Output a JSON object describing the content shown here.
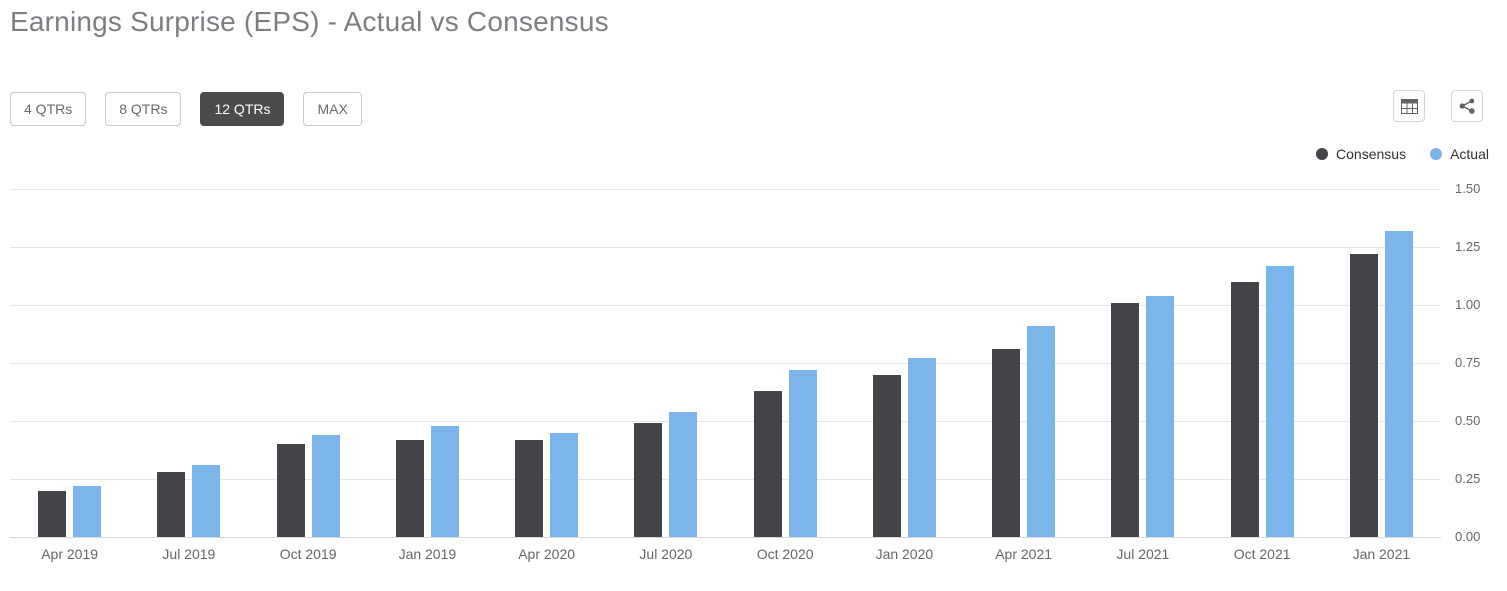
{
  "page": {
    "title": "Earnings Surprise (EPS) - Actual vs Consensus"
  },
  "toolbar": {
    "range_buttons": [
      {
        "label": "4 QTRs",
        "selected": false
      },
      {
        "label": "8 QTRs",
        "selected": false
      },
      {
        "label": "12 QTRs",
        "selected": true
      },
      {
        "label": "MAX",
        "selected": false
      }
    ],
    "selected_range": "12 QTRs",
    "icons": [
      {
        "name": "data-table-icon"
      },
      {
        "name": "share-icon"
      }
    ]
  },
  "legend": {
    "position": "top-right",
    "items": [
      {
        "label": "Consensus",
        "color": "#434348"
      },
      {
        "label": "Actual",
        "color": "#7cb5ec"
      }
    ]
  },
  "chart_data": {
    "type": "bar",
    "title": "Earnings Surprise (EPS) - Actual vs Consensus",
    "categories": [
      "Apr 2019",
      "Jul 2019",
      "Oct 2019",
      "Jan 2019",
      "Apr 2020",
      "Jul 2020",
      "Oct 2020",
      "Jan 2020",
      "Apr 2021",
      "Jul 2021",
      "Oct 2021",
      "Jan 2021"
    ],
    "series": [
      {
        "name": "Consensus",
        "color": "#434348",
        "values": [
          0.2,
          0.28,
          0.4,
          0.42,
          0.42,
          0.49,
          0.63,
          0.7,
          0.81,
          1.01,
          1.1,
          1.22
        ]
      },
      {
        "name": "Actual",
        "color": "#7cb5ec",
        "values": [
          0.22,
          0.31,
          0.44,
          0.48,
          0.45,
          0.54,
          0.72,
          0.77,
          0.91,
          1.04,
          1.17,
          1.32
        ]
      }
    ],
    "xlabel": "",
    "ylabel": "",
    "ylim": [
      0,
      1.5
    ],
    "y_ticks": [
      0.0,
      0.25,
      0.5,
      0.75,
      1.0,
      1.25,
      1.5
    ],
    "y_tick_labels": [
      "0.00",
      "0.25",
      "0.50",
      "0.75",
      "1.00",
      "1.25",
      "1.50"
    ],
    "y_axis_side": "right",
    "grid": true,
    "legend_position": "top-right"
  },
  "colors": {
    "consensus": "#434348",
    "actual": "#7cb5ec",
    "grid": "#e6e6e6",
    "selected_button_bg": "#4b4b4d",
    "axis_text": "#666666",
    "title_text": "#7b7e82"
  }
}
